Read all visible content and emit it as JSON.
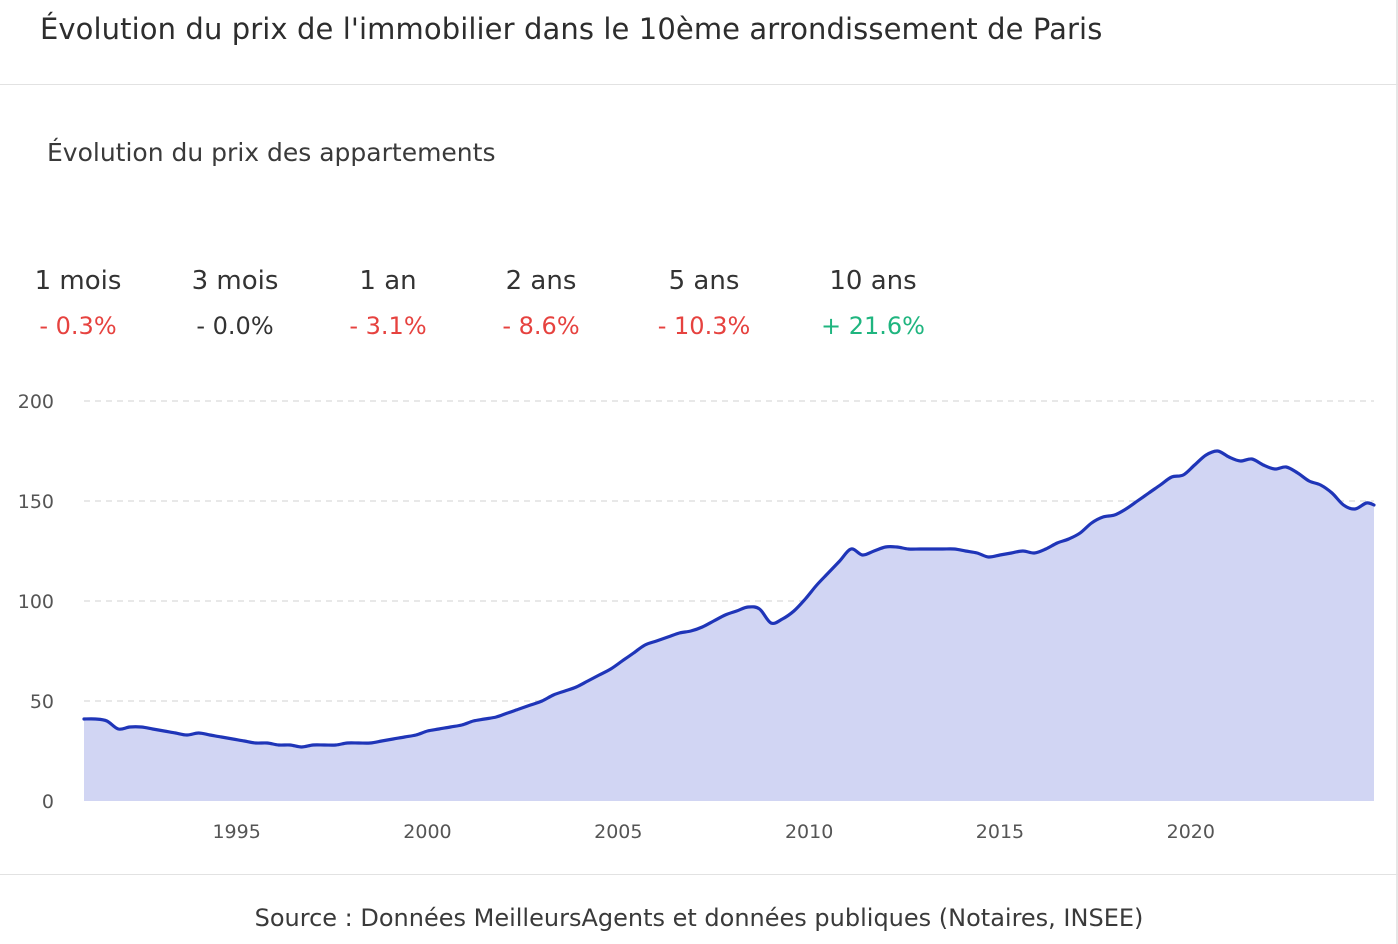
{
  "header": {
    "title": "Évolution du prix de l'immobilier dans le 10ème arrondissement de Paris"
  },
  "chart_title": "Évolution du prix des appartements",
  "stats": [
    {
      "label": "1 mois",
      "value": "- 0.3%",
      "trend": "negative"
    },
    {
      "label": "3 mois",
      "value": "- 0.0%",
      "trend": "neutral"
    },
    {
      "label": "1 an",
      "value": "- 3.1%",
      "trend": "negative"
    },
    {
      "label": "2 ans",
      "value": "- 8.6%",
      "trend": "negative"
    },
    {
      "label": "5 ans",
      "value": "- 10.3%",
      "trend": "negative"
    },
    {
      "label": "10 ans",
      "value": "+ 21.6%",
      "trend": "positive"
    }
  ],
  "colors": {
    "line": "#1f35b8",
    "area": "#d1d5f3",
    "grid": "#d9d9d9",
    "negative": "#e6423f",
    "positive": "#1fb57f",
    "neutral": "#333333"
  },
  "footer": {
    "source": "Source : Données MeilleursAgents et données publiques (Notaires, INSEE)"
  },
  "chart_data": {
    "type": "area",
    "title": "Évolution du prix des appartements",
    "xlabel": "",
    "ylabel": "",
    "xlim": [
      1991.0,
      2024.8
    ],
    "ylim": [
      0,
      200
    ],
    "yticks": [
      0,
      50,
      100,
      150,
      200
    ],
    "xticks": [
      1995,
      2000,
      2005,
      2010,
      2015,
      2020
    ],
    "grid": true,
    "series": [
      {
        "x": [
          1991.0,
          1991.3,
          1991.6,
          1991.9,
          1992.2,
          1992.5,
          1992.8,
          1993.1,
          1993.4,
          1993.7,
          1994.0,
          1994.3,
          1994.6,
          1994.9,
          1995.2,
          1995.5,
          1995.8,
          1996.1,
          1996.4,
          1996.7,
          1997.0,
          1997.3,
          1997.6,
          1997.9,
          1998.2,
          1998.5,
          1998.8,
          1999.1,
          1999.4,
          1999.7,
          2000.0,
          2000.3,
          2000.6,
          2000.9,
          2001.2,
          2001.5,
          2001.8,
          2002.1,
          2002.4,
          2002.7,
          2003.0,
          2003.3,
          2003.6,
          2003.9,
          2004.2,
          2004.5,
          2004.8,
          2005.1,
          2005.4,
          2005.7,
          2006.0,
          2006.3,
          2006.6,
          2006.9,
          2007.2,
          2007.5,
          2007.8,
          2008.1,
          2008.4,
          2008.7,
          2009.0,
          2009.3,
          2009.6,
          2009.9,
          2010.2,
          2010.5,
          2010.8,
          2011.1,
          2011.4,
          2011.7,
          2012.0,
          2012.3,
          2012.6,
          2012.9,
          2013.2,
          2013.5,
          2013.8,
          2014.1,
          2014.4,
          2014.7,
          2015.0,
          2015.3,
          2015.6,
          2015.9,
          2016.2,
          2016.5,
          2016.8,
          2017.1,
          2017.4,
          2017.7,
          2018.0,
          2018.3,
          2018.6,
          2018.9,
          2019.2,
          2019.5,
          2019.8,
          2020.1,
          2020.4,
          2020.7,
          2021.0,
          2021.3,
          2021.6,
          2021.9,
          2022.2,
          2022.5,
          2022.8,
          2023.1,
          2023.4,
          2023.7,
          2024.0,
          2024.3,
          2024.6,
          2024.8
        ],
        "values": [
          41,
          41,
          40,
          36,
          37,
          37,
          36,
          35,
          34,
          33,
          34,
          33,
          32,
          31,
          30,
          29,
          29,
          28,
          28,
          27,
          28,
          28,
          28,
          29,
          29,
          29,
          30,
          31,
          32,
          33,
          35,
          36,
          37,
          38,
          40,
          41,
          42,
          44,
          46,
          48,
          50,
          53,
          55,
          57,
          60,
          63,
          66,
          70,
          74,
          78,
          80,
          82,
          84,
          85,
          87,
          90,
          93,
          95,
          97,
          96,
          89,
          91,
          95,
          101,
          108,
          114,
          120,
          126,
          123,
          125,
          127,
          127,
          126,
          126,
          126,
          126,
          126,
          125,
          124,
          122,
          123,
          124,
          125,
          124,
          126,
          129,
          131,
          134,
          139,
          142,
          143,
          146,
          150,
          154,
          158,
          162,
          163,
          168,
          173,
          175,
          172,
          170,
          171,
          168,
          166,
          167,
          164,
          160,
          158,
          154,
          148,
          146,
          149,
          148
        ]
      }
    ]
  }
}
